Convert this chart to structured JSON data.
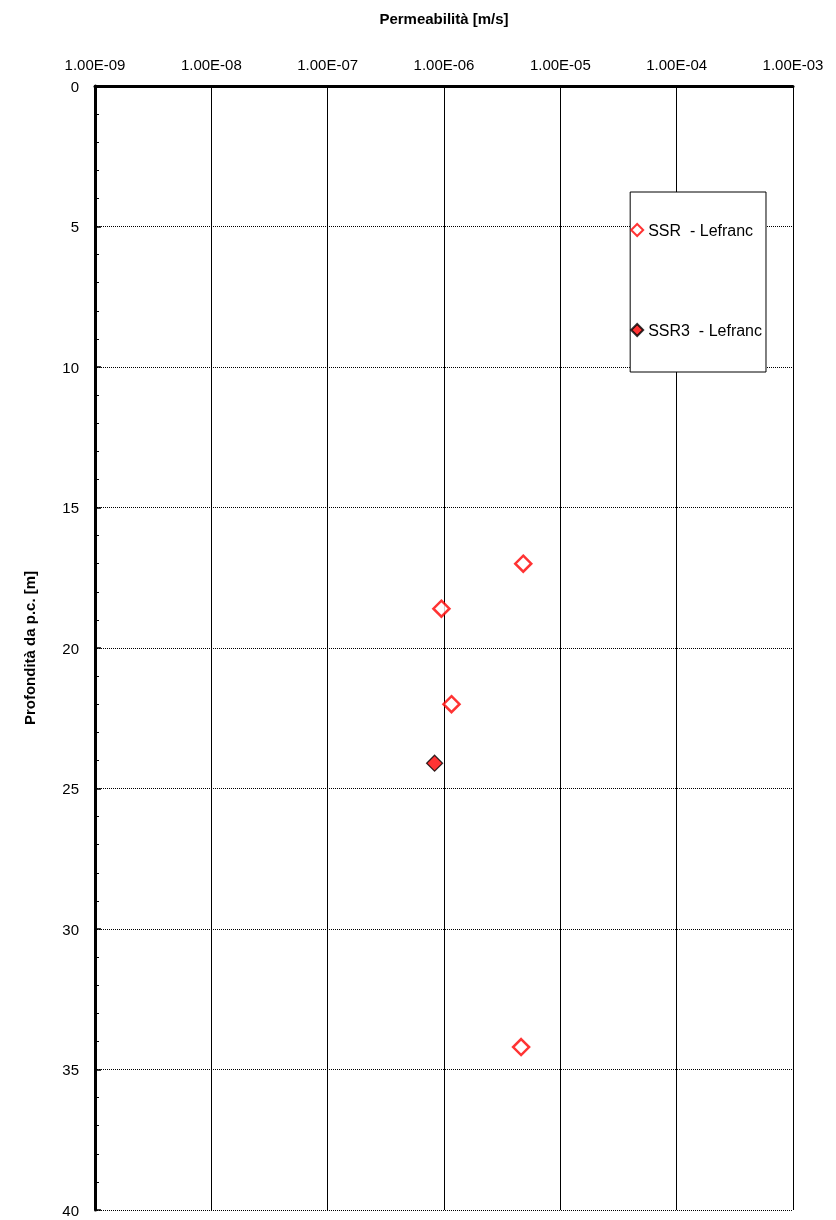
{
  "chart_data": {
    "type": "scatter",
    "xlabel": "Permeabilità [m/s]",
    "ylabel": "Profondità da p.c. [m]",
    "xlim": [
      1e-09,
      0.001
    ],
    "xticks": [
      {
        "value": 1e-09,
        "label": "1.00E-09"
      },
      {
        "value": 1e-08,
        "label": "1.00E-08"
      },
      {
        "value": 1e-07,
        "label": "1.00E-07"
      },
      {
        "value": 1e-06,
        "label": "1.00E-06"
      },
      {
        "value": 1e-05,
        "label": "1.00E-05"
      },
      {
        "value": 0.0001,
        "label": "1.00E-04"
      },
      {
        "value": 0.001,
        "label": "1.00E-03"
      }
    ],
    "ylim": [
      40,
      0
    ],
    "yticks": [
      0,
      5,
      10,
      15,
      20,
      25,
      30,
      35,
      40
    ],
    "log": "x",
    "grid": true,
    "legend": "top right",
    "marker": "diamond",
    "series": [
      {
        "name": "SSR  - Lefranc",
        "color": "#ff0000",
        "x": [
          4.8e-06,
          9.5e-07,
          1.16e-06,
          4.6e-06
        ],
        "values": [
          17.0,
          18.6,
          22.0,
          34.2
        ]
      },
      {
        "name": "SSR3  - Lefranc",
        "color": "#ff0000",
        "x": [
          8.3e-07
        ],
        "values": [
          24.1
        ]
      }
    ]
  }
}
